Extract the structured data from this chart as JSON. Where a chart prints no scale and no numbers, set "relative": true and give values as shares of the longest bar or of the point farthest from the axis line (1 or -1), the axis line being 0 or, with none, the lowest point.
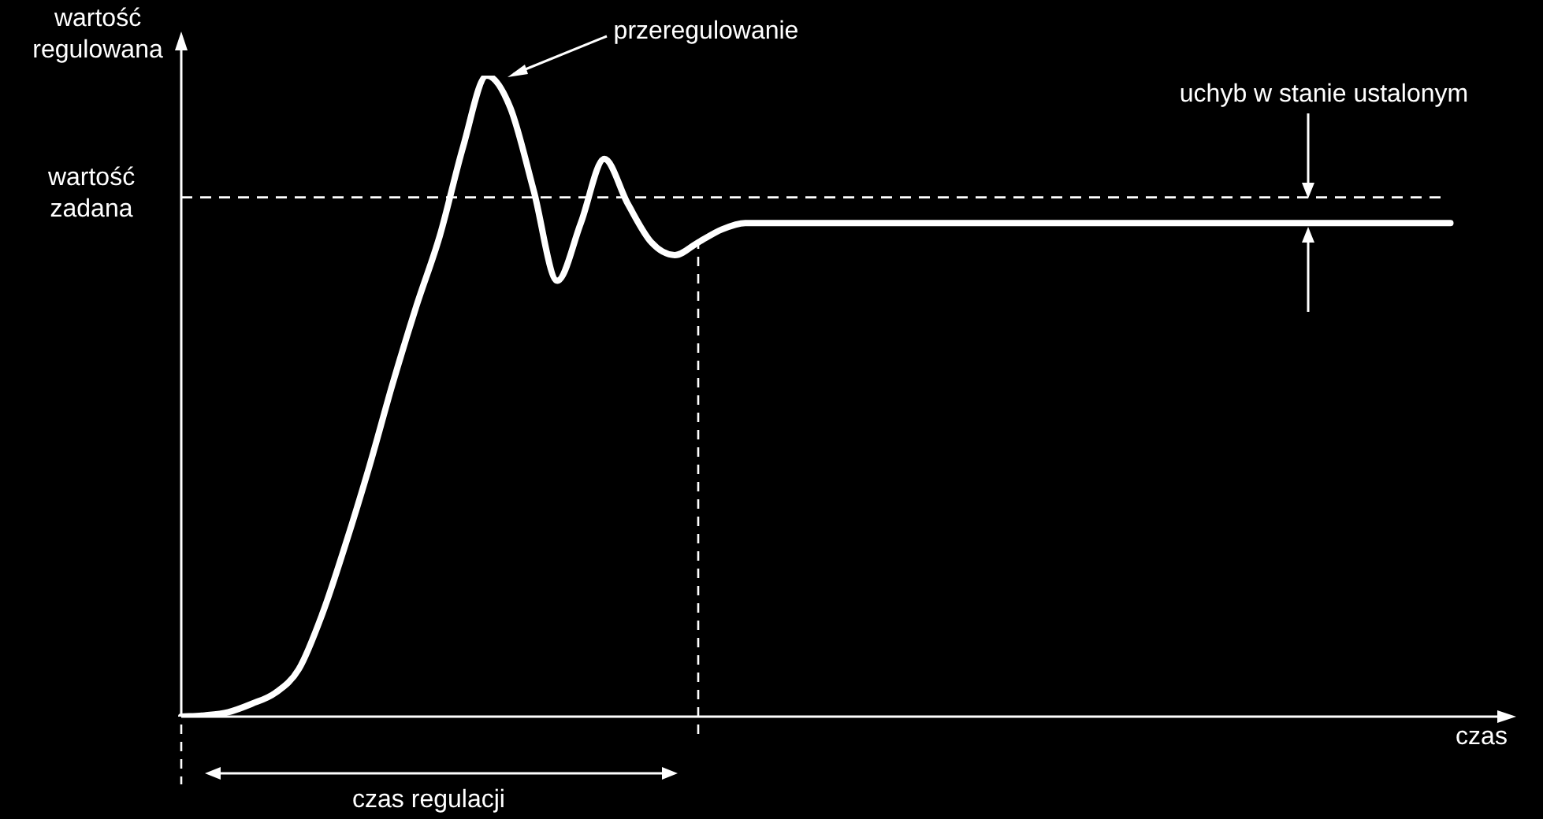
{
  "chart_data": {
    "type": "line",
    "relative": true,
    "categories": [
      null,
      null,
      null,
      null,
      null,
      null,
      null,
      null,
      null,
      null,
      null,
      null,
      null,
      null,
      null,
      null,
      null,
      null,
      null,
      null,
      null,
      null,
      null,
      null,
      null,
      null,
      null,
      null,
      null,
      null,
      null,
      null,
      null,
      null,
      null,
      null,
      null,
      null,
      null,
      null,
      null,
      null,
      null,
      null,
      null,
      null,
      null,
      null,
      null,
      null,
      null,
      null,
      null,
      null,
      null,
      null,
      null,
      null
    ],
    "series": [
      {
        "color": "#ffffff",
        "values": [
          0,
          0.002,
          0.007,
          0.02,
          0.037,
          0.074,
          0.16,
          0.27,
          0.39,
          0.52,
          0.64,
          0.75,
          0.89,
          1,
          0.95,
          0.82,
          0.68,
          0.77,
          0.87,
          0.8,
          0.74,
          0.72,
          0.74,
          0.76,
          0.77,
          0.77,
          0.77,
          0.77,
          0.77,
          0.77,
          0.77,
          0.77,
          0.77,
          0.77,
          0.77,
          0.77,
          0.77,
          0.77,
          0.77,
          0.77,
          0.77,
          0.77,
          0.77,
          0.77,
          0.77,
          0.77,
          0.77,
          0.77,
          0.77,
          0.77,
          0.77,
          0.77,
          0.77,
          0.77,
          0.77,
          null,
          null,
          null
        ]
      }
    ],
    "ylabel": "wartość regulowana",
    "xlabel": "czas",
    "ref_lines": [
      {
        "axis": "y",
        "value": 0.81,
        "label": "wartość zadana",
        "line_style": "dashed",
        "color": "#ffffff"
      }
    ],
    "annotations": [
      "przeregulowanie",
      "uchyb w stanie ustalonym",
      "czas regulacji"
    ],
    "legend": false,
    "marker": "none",
    "line_style": "solid"
  }
}
